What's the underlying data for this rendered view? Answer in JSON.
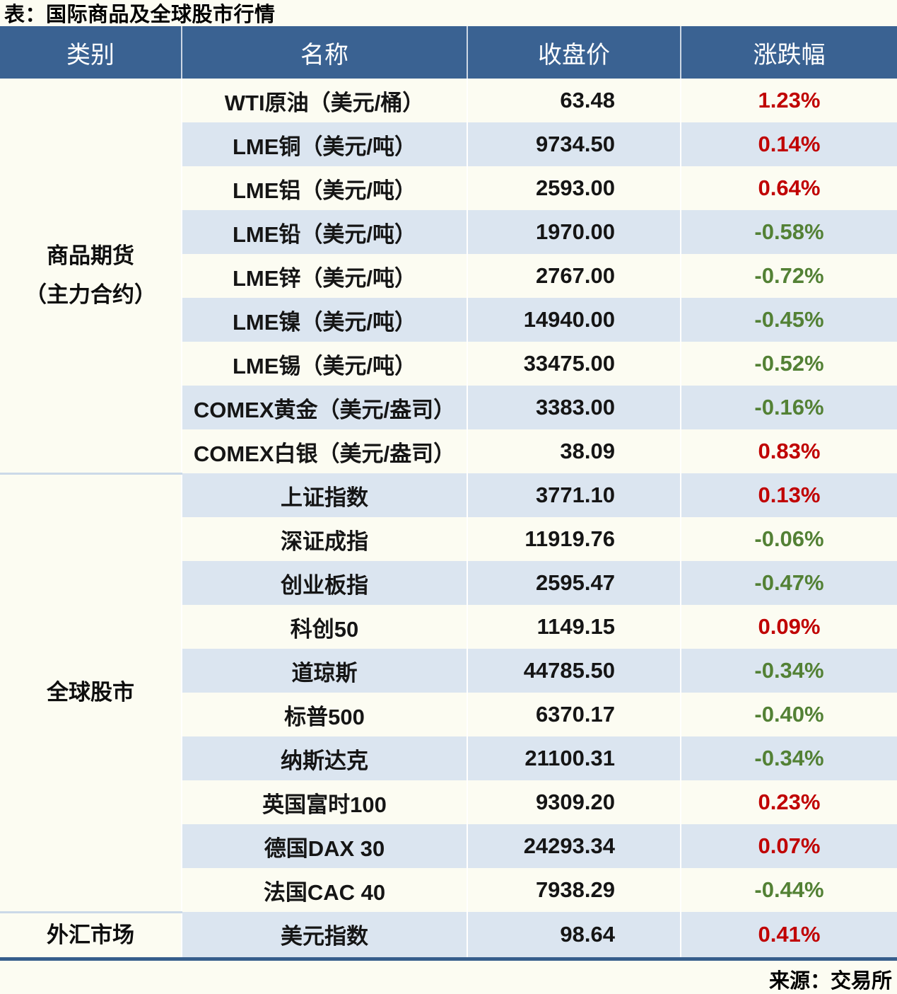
{
  "title": "表：国际商品及全球股市行情",
  "source": "来源：交易所",
  "palette": {
    "header_bg": "#3A6292",
    "stripe_bg": "#DBE5F0",
    "page_bg": "#FCFCF2",
    "up_color": "#C00000",
    "down_color": "#538135",
    "bottom_border": "#375E8C",
    "group_divider": "#CBD9E8"
  },
  "chart_data": {
    "type": "table",
    "title": "表：国际商品及全球股市行情",
    "columns": [
      "类别",
      "名称",
      "收盘价",
      "涨跌幅"
    ],
    "groups": [
      {
        "label": "商品期货\n（主力合约）",
        "span": 9
      },
      {
        "label": "全球股市",
        "span": 10
      },
      {
        "label": "外汇市场",
        "span": 1
      }
    ],
    "rows": [
      {
        "name": "WTI原油（美元/桶）",
        "close": "63.48",
        "change": "1.23%",
        "trend": "up"
      },
      {
        "name": "LME铜（美元/吨）",
        "close": "9734.50",
        "change": "0.14%",
        "trend": "up"
      },
      {
        "name": "LME铝（美元/吨）",
        "close": "2593.00",
        "change": "0.64%",
        "trend": "up"
      },
      {
        "name": "LME铅（美元/吨）",
        "close": "1970.00",
        "change": "-0.58%",
        "trend": "down"
      },
      {
        "name": "LME锌（美元/吨）",
        "close": "2767.00",
        "change": "-0.72%",
        "trend": "down"
      },
      {
        "name": "LME镍（美元/吨）",
        "close": "14940.00",
        "change": "-0.45%",
        "trend": "down"
      },
      {
        "name": "LME锡（美元/吨）",
        "close": "33475.00",
        "change": "-0.52%",
        "trend": "down"
      },
      {
        "name": "COMEX黄金（美元/盎司）",
        "close": "3383.00",
        "change": "-0.16%",
        "trend": "down"
      },
      {
        "name": "COMEX白银（美元/盎司）",
        "close": "38.09",
        "change": "0.83%",
        "trend": "up"
      },
      {
        "name": "上证指数",
        "close": "3771.10",
        "change": "0.13%",
        "trend": "up"
      },
      {
        "name": "深证成指",
        "close": "11919.76",
        "change": "-0.06%",
        "trend": "down"
      },
      {
        "name": "创业板指",
        "close": "2595.47",
        "change": "-0.47%",
        "trend": "down"
      },
      {
        "name": "科创50",
        "close": "1149.15",
        "change": "0.09%",
        "trend": "up"
      },
      {
        "name": "道琼斯",
        "close": "44785.50",
        "change": "-0.34%",
        "trend": "down"
      },
      {
        "name": "标普500",
        "close": "6370.17",
        "change": "-0.40%",
        "trend": "down"
      },
      {
        "name": "纳斯达克",
        "close": "21100.31",
        "change": "-0.34%",
        "trend": "down"
      },
      {
        "name": "英国富时100",
        "close": "9309.20",
        "change": "0.23%",
        "trend": "up"
      },
      {
        "name": "德国DAX 30",
        "close": "24293.34",
        "change": "0.07%",
        "trend": "up"
      },
      {
        "name": "法国CAC 40",
        "close": "7938.29",
        "change": "-0.44%",
        "trend": "down"
      },
      {
        "name": "美元指数",
        "close": "98.64",
        "change": "0.41%",
        "trend": "up"
      }
    ]
  }
}
